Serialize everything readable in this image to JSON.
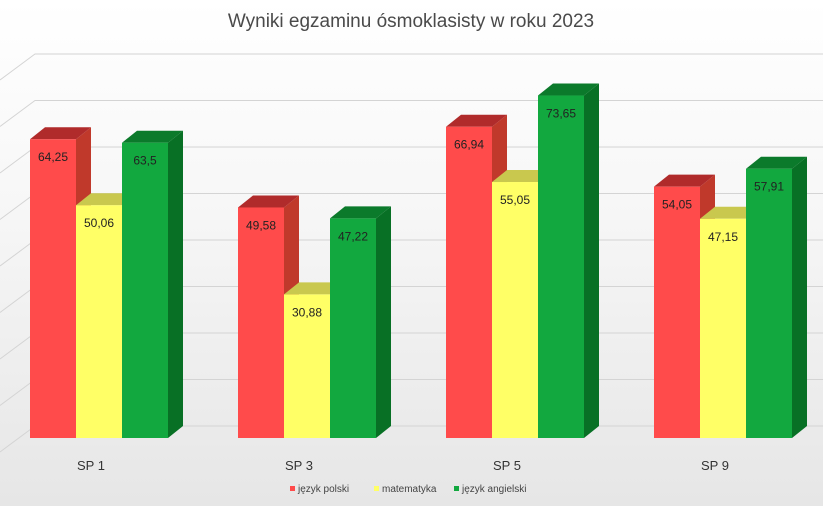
{
  "chart_data": {
    "type": "bar",
    "title": "Wyniki egzaminu ósmoklasisty w roku 2023",
    "categories": [
      "SP 1",
      "SP 3",
      "SP 5",
      "SP 9"
    ],
    "series": [
      {
        "name": "język polski",
        "values": [
          64.25,
          49.58,
          66.94,
          54.05
        ],
        "labels": [
          "64,25",
          "49,58",
          "66,94",
          "54,05"
        ],
        "color": "#ff4b4b",
        "top_color": "#b02b2b",
        "side_color": "#c0392b"
      },
      {
        "name": "matematyka",
        "values": [
          50.06,
          30.88,
          55.05,
          47.15
        ],
        "labels": [
          "50,06",
          "30,88",
          "55,05",
          "47,15"
        ],
        "color": "#ffff66",
        "top_color": "#c9c84e",
        "side_color": "#c8c84a"
      },
      {
        "name": "język angielski",
        "values": [
          63.5,
          47.22,
          73.65,
          57.91
        ],
        "labels": [
          "63,5",
          "47,22",
          "73,65",
          "57,91"
        ],
        "color": "#12a83f",
        "top_color": "#0b7a2b",
        "side_color": "#087025"
      }
    ],
    "ylim": [
      0,
      80
    ],
    "grid": true,
    "legend": "bottom",
    "three_d": true
  }
}
